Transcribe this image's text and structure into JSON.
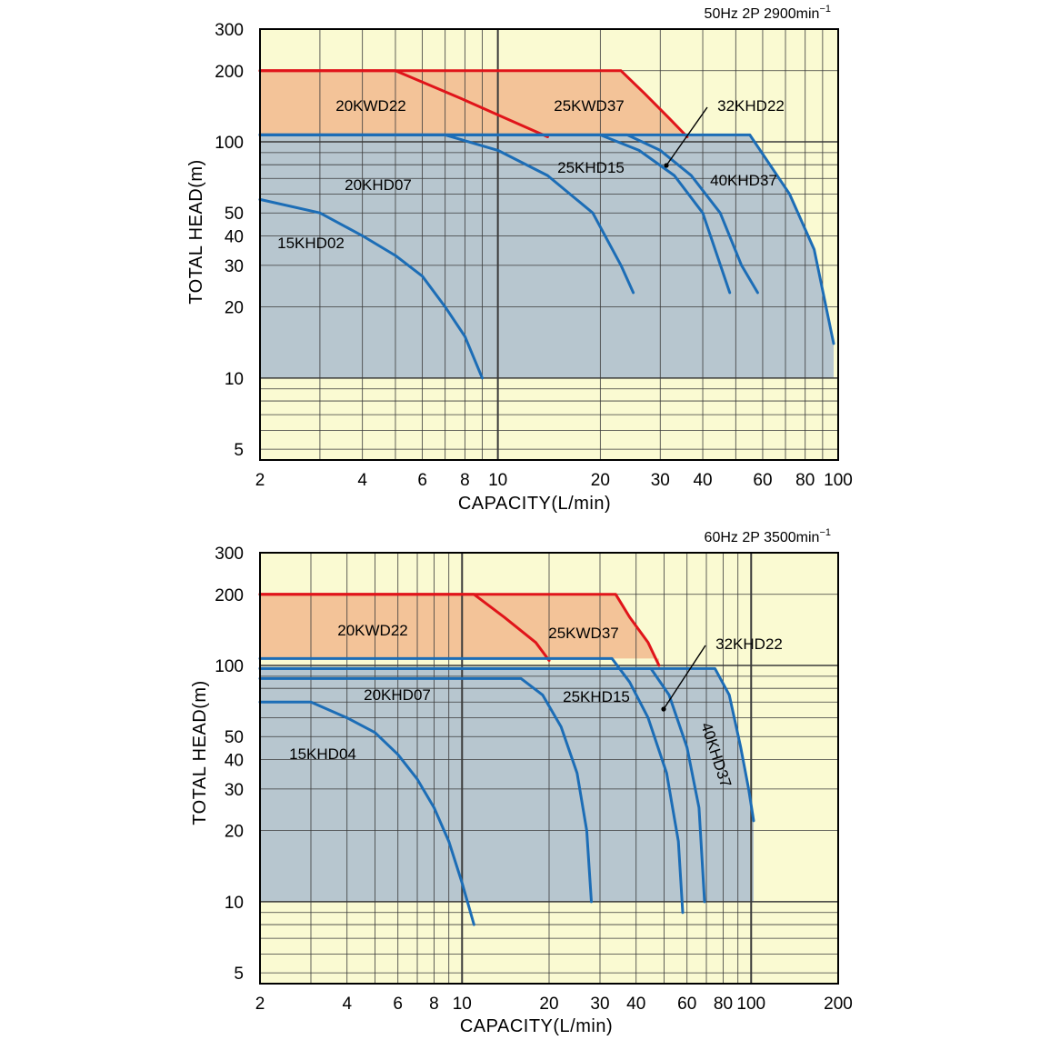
{
  "colors": {
    "background": "#fafad2",
    "region_fill": "#b7c6cf",
    "kwd_fill": "#f3c398",
    "kwd_curve": "#e0141a",
    "khd_curve": "#1c6db6",
    "grid": "#3a3a3a",
    "border": "#000000"
  },
  "chart_data": [
    {
      "type": "line",
      "title": "50Hz 2P 2900min",
      "title_sup": "−1",
      "xlabel": "CAPACITY(L/min)",
      "ylabel": "TOTAL HEAD(m)",
      "xscale": "log",
      "yscale": "log",
      "xlim": [
        2,
        100
      ],
      "ylim": [
        4.5,
        300
      ],
      "xticks": [
        2,
        4,
        6,
        8,
        10,
        20,
        30,
        40,
        60,
        80,
        100
      ],
      "xtick_labels": [
        "2",
        "4",
        "6",
        "8",
        "10",
        "20",
        "30",
        "40",
        "60",
        "80",
        "100"
      ],
      "yticks": [
        300,
        200,
        100,
        50,
        40,
        30,
        20,
        10,
        5
      ],
      "ytick_labels": [
        "300",
        "200",
        "100",
        "50",
        "40",
        "30",
        "20",
        "10",
        "5"
      ],
      "grid": true,
      "series": [
        {
          "name": "20KWD22",
          "color": "#e0141a",
          "x": [
            2,
            5,
            8,
            10,
            14
          ],
          "y": [
            200,
            200,
            150,
            130,
            105
          ]
        },
        {
          "name": "25KWD37",
          "color": "#e0141a",
          "x": [
            2,
            23,
            27,
            32,
            36
          ],
          "y": [
            200,
            200,
            160,
            125,
            105
          ]
        },
        {
          "name": "20KHD07",
          "color": "#1c6db6",
          "x": [
            2,
            7,
            10,
            14,
            19,
            23,
            25
          ],
          "y": [
            107,
            107,
            92,
            72,
            50,
            30,
            23
          ]
        },
        {
          "name": "25KHD15",
          "color": "#1c6db6",
          "x": [
            2,
            20,
            26,
            33,
            40,
            48
          ],
          "y": [
            107,
            107,
            92,
            72,
            50,
            23
          ]
        },
        {
          "name": "32KHD22",
          "color": "#1c6db6",
          "x": [
            2,
            24,
            30,
            37,
            45,
            52,
            58
          ],
          "y": [
            107,
            107,
            92,
            72,
            50,
            30,
            23
          ]
        },
        {
          "name": "40KHD37",
          "color": "#1c6db6",
          "x": [
            2,
            55,
            63,
            72,
            85,
            97
          ],
          "y": [
            107,
            107,
            80,
            60,
            35,
            14
          ]
        },
        {
          "name": "15KHD02",
          "color": "#1c6db6",
          "x": [
            2,
            3,
            4,
            5,
            6,
            7,
            8,
            9
          ],
          "y": [
            57,
            50,
            40,
            33,
            27,
            20,
            15,
            10
          ]
        }
      ],
      "annotations": [
        "20KWD22",
        "25KWD37",
        "32KHD22",
        "25KHD15",
        "40KHD37",
        "20KHD07",
        "15KHD02"
      ]
    },
    {
      "type": "line",
      "title": "60Hz 2P 3500min",
      "title_sup": "−1",
      "xlabel": "CAPACITY(L/min)",
      "ylabel": "TOTAL HEAD(m)",
      "xscale": "log",
      "yscale": "log",
      "xlim": [
        2,
        200
      ],
      "ylim": [
        4.5,
        300
      ],
      "xticks": [
        2,
        4,
        6,
        8,
        10,
        20,
        30,
        40,
        60,
        80,
        100,
        200
      ],
      "xtick_labels": [
        "2",
        "4",
        "6",
        "8",
        "10",
        "20",
        "30",
        "40",
        "60",
        "80",
        "100",
        "200"
      ],
      "yticks": [
        300,
        200,
        100,
        50,
        40,
        30,
        20,
        10,
        5
      ],
      "ytick_labels": [
        "300",
        "200",
        "100",
        "50",
        "40",
        "30",
        "20",
        "10",
        "5"
      ],
      "grid": true,
      "series": [
        {
          "name": "20KWD22",
          "color": "#e0141a",
          "x": [
            2,
            11,
            14,
            18,
            20
          ],
          "y": [
            200,
            200,
            160,
            125,
            105
          ]
        },
        {
          "name": "25KWD37",
          "color": "#e0141a",
          "x": [
            2,
            34,
            38,
            44,
            48
          ],
          "y": [
            200,
            200,
            160,
            125,
            100
          ]
        },
        {
          "name": "20KHD07",
          "color": "#1c6db6",
          "x": [
            2,
            16,
            19,
            22,
            25,
            27,
            28
          ],
          "y": [
            88,
            88,
            75,
            55,
            35,
            20,
            10
          ]
        },
        {
          "name": "25KHD15",
          "color": "#1c6db6",
          "x": [
            2,
            33,
            38,
            44,
            51,
            56,
            58
          ],
          "y": [
            107,
            107,
            85,
            60,
            35,
            18,
            9
          ]
        },
        {
          "name": "32KHD22",
          "color": "#1c6db6",
          "x": [
            2,
            45,
            52,
            60,
            66,
            69
          ],
          "y": [
            97,
            97,
            75,
            45,
            25,
            10
          ]
        },
        {
          "name": "40KHD37",
          "color": "#1c6db6",
          "x": [
            2,
            75,
            84,
            92,
            98,
            102
          ],
          "y": [
            97,
            97,
            75,
            45,
            30,
            22
          ]
        },
        {
          "name": "15KHD04",
          "color": "#1c6db6",
          "x": [
            2,
            3,
            4,
            5,
            6,
            7,
            8,
            9,
            10,
            11
          ],
          "y": [
            70,
            70,
            60,
            52,
            42,
            33,
            25,
            18,
            12,
            8
          ]
        }
      ],
      "annotations": [
        "20KWD22",
        "25KWD37",
        "32KHD22",
        "20KHD07",
        "25KHD15",
        "40KHD37",
        "15KHD04"
      ]
    }
  ]
}
